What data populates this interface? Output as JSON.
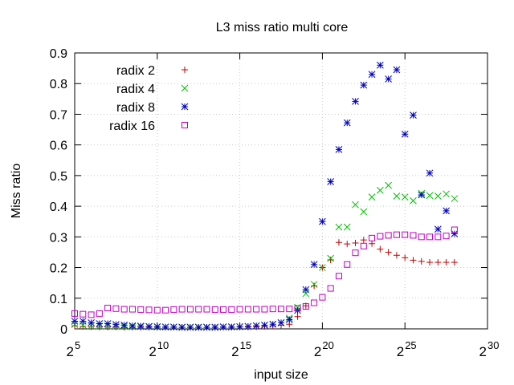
{
  "chart_data": {
    "type": "scatter",
    "title": "L3 miss ratio multi core",
    "xlabel": "input size",
    "ylabel": "Miss ratio",
    "x_scale": "log2",
    "xlim_exponent": [
      5,
      30
    ],
    "ylim": [
      0,
      0.9
    ],
    "x_ticks": [
      {
        "base": "2",
        "exp": "5",
        "value": 5
      },
      {
        "base": "2",
        "exp": "10",
        "value": 10
      },
      {
        "base": "2",
        "exp": "15",
        "value": 15
      },
      {
        "base": "2",
        "exp": "20",
        "value": 20
      },
      {
        "base": "2",
        "exp": "25",
        "value": 25
      },
      {
        "base": "2",
        "exp": "30",
        "value": 30
      }
    ],
    "y_ticks": [
      "0",
      "0.1",
      "0.2",
      "0.3",
      "0.4",
      "0.5",
      "0.6",
      "0.7",
      "0.8",
      "0.9"
    ],
    "y_tick_values": [
      0,
      0.1,
      0.2,
      0.3,
      0.4,
      0.5,
      0.6,
      0.7,
      0.8,
      0.9
    ],
    "grid": true,
    "legend_position": "top-left",
    "series": [
      {
        "name": "radix 2",
        "color": "#c00000",
        "marker": "plus",
        "x": [
          5,
          5.5,
          6,
          6.5,
          7,
          7.5,
          8,
          8.5,
          9,
          9.5,
          10,
          10.5,
          11,
          11.5,
          12,
          12.5,
          13,
          13.5,
          14,
          14.5,
          15,
          15.5,
          16,
          16.5,
          17,
          17.5,
          18,
          18.5,
          19,
          19.5,
          20,
          20.5,
          21,
          21.5,
          22,
          22.5,
          23,
          23.5,
          24,
          24.5,
          25,
          25.5,
          26,
          26.5,
          27,
          27.5,
          28
        ],
        "y": [
          0.01,
          0.008,
          0.007,
          0.006,
          0.006,
          0.006,
          0.005,
          0.005,
          0.005,
          0.005,
          0.005,
          0.005,
          0.005,
          0.005,
          0.005,
          0.005,
          0.005,
          0.005,
          0.005,
          0.005,
          0.006,
          0.006,
          0.007,
          0.008,
          0.01,
          0.012,
          0.015,
          0.04,
          0.075,
          0.14,
          0.2,
          0.225,
          0.282,
          0.277,
          0.28,
          0.29,
          0.278,
          0.26,
          0.25,
          0.24,
          0.232,
          0.224,
          0.22,
          0.217,
          0.217,
          0.217,
          0.217
        ]
      },
      {
        "name": "radix 4",
        "color": "#00c000",
        "marker": "cross",
        "x": [
          5,
          5.5,
          6,
          6.5,
          7,
          7.5,
          8,
          8.5,
          9,
          9.5,
          10,
          10.5,
          11,
          11.5,
          12,
          12.5,
          13,
          13.5,
          14,
          14.5,
          15,
          15.5,
          16,
          16.5,
          17,
          17.5,
          18,
          18.5,
          19,
          19.5,
          20,
          20.5,
          21,
          21.5,
          22,
          22.5,
          23,
          23.5,
          24,
          24.5,
          25,
          25.5,
          26,
          26.5,
          27,
          27.5,
          28
        ],
        "y": [
          0.014,
          0.012,
          0.01,
          0.009,
          0.009,
          0.008,
          0.008,
          0.007,
          0.007,
          0.007,
          0.006,
          0.006,
          0.006,
          0.006,
          0.006,
          0.006,
          0.006,
          0.006,
          0.007,
          0.007,
          0.007,
          0.008,
          0.01,
          0.012,
          0.015,
          0.02,
          0.035,
          0.07,
          0.115,
          0.145,
          0.2,
          0.23,
          0.332,
          0.332,
          0.405,
          0.382,
          0.43,
          0.452,
          0.468,
          0.433,
          0.43,
          0.418,
          0.442,
          0.435,
          0.433,
          0.44,
          0.425
        ]
      },
      {
        "name": "radix 8",
        "color": "#0000c0",
        "marker": "star",
        "x": [
          5,
          5.5,
          6,
          6.5,
          7,
          7.5,
          8,
          8.5,
          9,
          9.5,
          10,
          10.5,
          11,
          11.5,
          12,
          12.5,
          13,
          13.5,
          14,
          14.5,
          15,
          15.5,
          16,
          16.5,
          17,
          17.5,
          18,
          18.5,
          19,
          19.5,
          20,
          20.5,
          21,
          21.5,
          22,
          22.5,
          23,
          23.5,
          24,
          24.5,
          25,
          25.5,
          26,
          26.5,
          27,
          27.5,
          28
        ],
        "y": [
          0.025,
          0.025,
          0.02,
          0.017,
          0.017,
          0.014,
          0.012,
          0.01,
          0.009,
          0.008,
          0.007,
          0.006,
          0.006,
          0.005,
          0.005,
          0.005,
          0.005,
          0.005,
          0.006,
          0.006,
          0.007,
          0.008,
          0.01,
          0.012,
          0.015,
          0.02,
          0.03,
          0.06,
          0.128,
          0.21,
          0.35,
          0.48,
          0.585,
          0.672,
          0.742,
          0.795,
          0.83,
          0.86,
          0.815,
          0.845,
          0.635,
          0.697,
          0.437,
          0.508,
          0.325,
          0.385,
          0.31
        ]
      },
      {
        "name": "radix 16",
        "color": "#c000c0",
        "marker": "square",
        "x": [
          5,
          5.5,
          6,
          6.5,
          7,
          7.5,
          8,
          8.5,
          9,
          9.5,
          10,
          10.5,
          11,
          11.5,
          12,
          12.5,
          13,
          13.5,
          14,
          14.5,
          15,
          15.5,
          16,
          16.5,
          17,
          17.5,
          18,
          18.5,
          19,
          19.5,
          20,
          20.5,
          21,
          21.5,
          22,
          22.5,
          23,
          23.5,
          24,
          24.5,
          25,
          25.5,
          26,
          26.5,
          27,
          27.5,
          28
        ],
        "y": [
          0.05,
          0.048,
          0.046,
          0.05,
          0.068,
          0.066,
          0.064,
          0.064,
          0.063,
          0.062,
          0.061,
          0.061,
          0.063,
          0.064,
          0.064,
          0.064,
          0.064,
          0.063,
          0.063,
          0.063,
          0.064,
          0.064,
          0.064,
          0.064,
          0.065,
          0.065,
          0.065,
          0.067,
          0.073,
          0.085,
          0.103,
          0.132,
          0.172,
          0.21,
          0.248,
          0.27,
          0.296,
          0.302,
          0.305,
          0.307,
          0.307,
          0.305,
          0.3,
          0.3,
          0.3,
          0.303,
          0.323
        ]
      }
    ]
  }
}
